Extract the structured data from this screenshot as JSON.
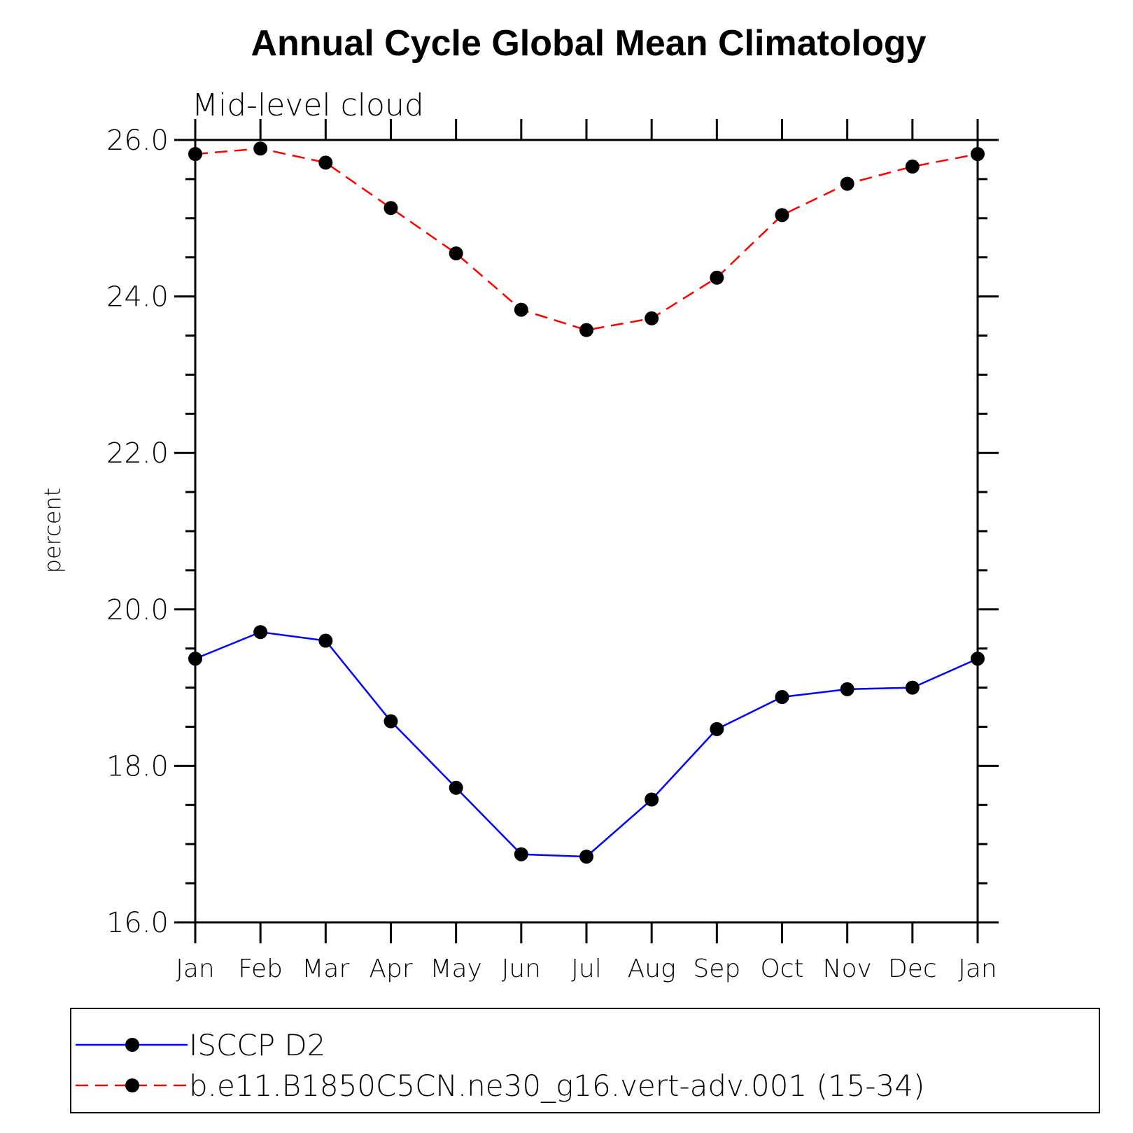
{
  "chart_data": {
    "type": "line",
    "title": "Annual Cycle Global Mean Climatology",
    "subtitle": "Mid-level cloud",
    "ylabel": "percent",
    "xlabel": "",
    "ylim": [
      16.0,
      26.0
    ],
    "yticks": [
      "16.0",
      "18.0",
      "20.0",
      "22.0",
      "24.0",
      "26.0"
    ],
    "categories": [
      "Jan",
      "Feb",
      "Mar",
      "Apr",
      "May",
      "Jun",
      "Jul",
      "Aug",
      "Sep",
      "Oct",
      "Nov",
      "Dec",
      "Jan"
    ],
    "series": [
      {
        "name": "ISCCP D2",
        "color": "#0000ff",
        "dash": "solid",
        "marker": "filled-circle",
        "values": [
          19.37,
          19.71,
          19.6,
          18.57,
          17.72,
          16.87,
          16.84,
          17.57,
          18.47,
          18.88,
          18.98,
          19.0,
          19.37
        ]
      },
      {
        "name": "b.e11.B1850C5CN.ne30_g16.vert-adv.001 (15-34)",
        "color": "#ff0000",
        "dash": "dashed",
        "marker": "filled-circle",
        "values": [
          25.82,
          25.89,
          25.71,
          25.13,
          24.55,
          23.83,
          23.57,
          23.72,
          24.24,
          25.04,
          25.44,
          25.66,
          25.82
        ]
      }
    ],
    "grid": false,
    "legend_position": "bottom"
  }
}
